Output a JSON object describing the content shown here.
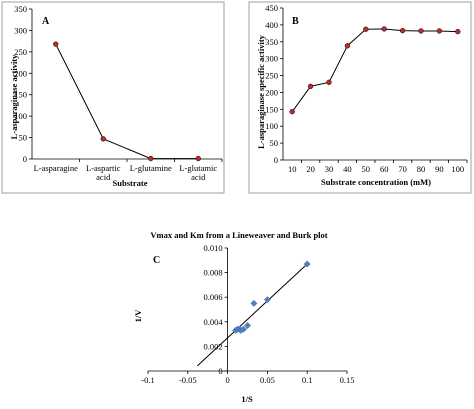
{
  "chart_data": [
    {
      "type": "line",
      "panel_label": "A",
      "categories": [
        "L-asparagine",
        "L-aspartic acid",
        "L-glutamine",
        "L-glutamic acid"
      ],
      "category_lines": [
        [
          "L-asparagine"
        ],
        [
          "L-aspartic",
          "acid"
        ],
        [
          "L-glutamine"
        ],
        [
          "L-glutamic",
          "acid"
        ]
      ],
      "values": [
        268,
        47,
        1,
        1
      ],
      "xlabel": "Substrate",
      "ylabel": "L-asparaginase activity",
      "ylim": [
        0,
        350
      ],
      "yticks": [
        0,
        50,
        100,
        150,
        200,
        250,
        300,
        350
      ],
      "grid": false,
      "colors": {
        "line": "#000000",
        "marker": "#c0282d"
      }
    },
    {
      "type": "line",
      "panel_label": "B",
      "x": [
        10,
        20,
        30,
        40,
        50,
        60,
        70,
        80,
        90,
        100
      ],
      "values": [
        143,
        218,
        230,
        338,
        387,
        388,
        383,
        382,
        382,
        380
      ],
      "xlabel": "Substrate concentration (mM)",
      "ylabel": "L-asparaginase specific activity",
      "ylim": [
        0,
        450
      ],
      "yticks": [
        0,
        50,
        100,
        150,
        200,
        250,
        300,
        350,
        400,
        450
      ],
      "xticks": [
        10,
        20,
        30,
        40,
        50,
        60,
        70,
        80,
        90,
        100
      ],
      "grid": false,
      "colors": {
        "line": "#000000",
        "marker": "#c0282d"
      }
    },
    {
      "type": "scatter",
      "panel_label": "C",
      "title": "Vmax and Km from a Lineweaver and Burk plot",
      "xlabel": "1/S",
      "ylabel": "1/V",
      "xlim": [
        -0.1,
        0.15
      ],
      "ylim": [
        0,
        0.01
      ],
      "xticks": [
        -0.1,
        -0.05,
        0,
        0.05,
        0.1,
        0.15
      ],
      "yticks": [
        0,
        0.002,
        0.004,
        0.006,
        0.008,
        0.01
      ],
      "points": [
        {
          "x": 0.01,
          "y": 0.0033
        },
        {
          "x": 0.0125,
          "y": 0.0034
        },
        {
          "x": 0.015,
          "y": 0.0034
        },
        {
          "x": 0.0167,
          "y": 0.0033
        },
        {
          "x": 0.02,
          "y": 0.0034
        },
        {
          "x": 0.025,
          "y": 0.0037
        },
        {
          "x": 0.033,
          "y": 0.0055
        },
        {
          "x": 0.05,
          "y": 0.0058
        },
        {
          "x": 0.1,
          "y": 0.0087
        }
      ],
      "trendline": {
        "x1": -0.038,
        "x2": 0.1,
        "slope": 0.06,
        "intercept": 0.0027
      },
      "grid": false,
      "colors": {
        "line": "#000000",
        "marker": "#4f81bd"
      }
    }
  ]
}
